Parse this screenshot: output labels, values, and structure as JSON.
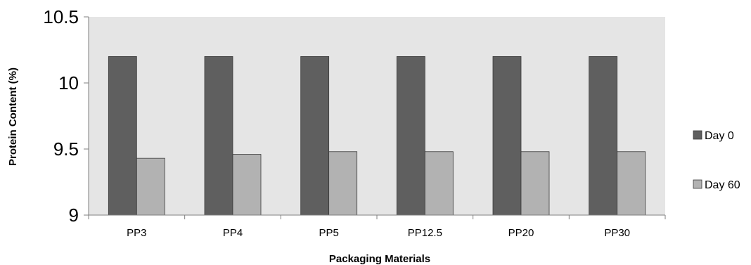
{
  "chart_data": {
    "type": "bar",
    "categories": [
      "PP3",
      "PP4",
      "PP5",
      "PP12.5",
      "PP20",
      "PP30"
    ],
    "series": [
      {
        "name": "Day 0",
        "values": [
          10.2,
          10.2,
          10.2,
          10.2,
          10.2,
          10.2
        ],
        "color": "#5f5f5f"
      },
      {
        "name": "Day 60",
        "values": [
          9.43,
          9.46,
          9.48,
          9.48,
          9.48,
          9.48
        ],
        "color": "#b2b2b2"
      }
    ],
    "xlabel": "Packaging Materials",
    "ylabel": "Protein Content (%)",
    "ylim": [
      9,
      10.5
    ],
    "yticks": [
      "9",
      "9.5",
      "10",
      "10.5"
    ],
    "plot_background": "#e5e5e5",
    "legend": "right",
    "grid": false
  }
}
